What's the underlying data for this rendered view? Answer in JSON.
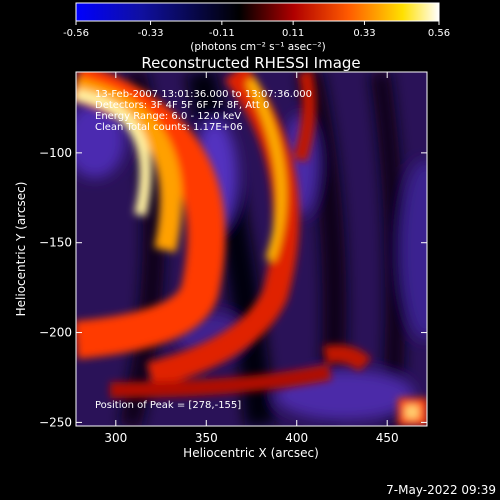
{
  "colorbar": {
    "ticks": [
      -0.56,
      -0.33,
      -0.11,
      0.11,
      0.33,
      0.56
    ],
    "tick_labels": [
      "-0.56",
      "-0.33",
      "-0.11",
      "0.11",
      "0.33",
      "0.56"
    ],
    "range": [
      -0.56,
      0.56
    ],
    "unit_label": "(photons cm⁻² s⁻¹ asec⁻²)",
    "colors": [
      "#0000ff",
      "#000000",
      "#ff0000",
      "#ffff00",
      "#ffffff"
    ]
  },
  "chart_data": {
    "type": "heatmap",
    "title": "Reconstructed RHESSI Image",
    "xlabel": "Heliocentric X (arcsec)",
    "ylabel": "Heliocentric Y (arcsec)",
    "xlim": [
      278,
      472
    ],
    "ylim": [
      -252,
      -55
    ],
    "xticks": [
      300,
      350,
      400,
      450
    ],
    "yticks": [
      -100,
      -150,
      -200,
      -250
    ],
    "xtick_labels": [
      "300",
      "350",
      "400",
      "450"
    ],
    "ytick_labels": [
      "−100",
      "−150",
      "−200",
      "−250"
    ],
    "annotations": [
      "13-Feb-2007 13:01:36.000 to 13:07:36.000",
      "Detectors: 3F 4F 5F 6F 7F 8F, Att 0",
      "Energy Range: 6.0 - 12.0 keV",
      "Clean  Total counts: 1.17E+06"
    ],
    "peak_label": "Position of Peak = [278,-155]",
    "peak_position": [
      278,
      -155
    ]
  },
  "footer": {
    "timestamp": "7-May-2022 09:39"
  }
}
